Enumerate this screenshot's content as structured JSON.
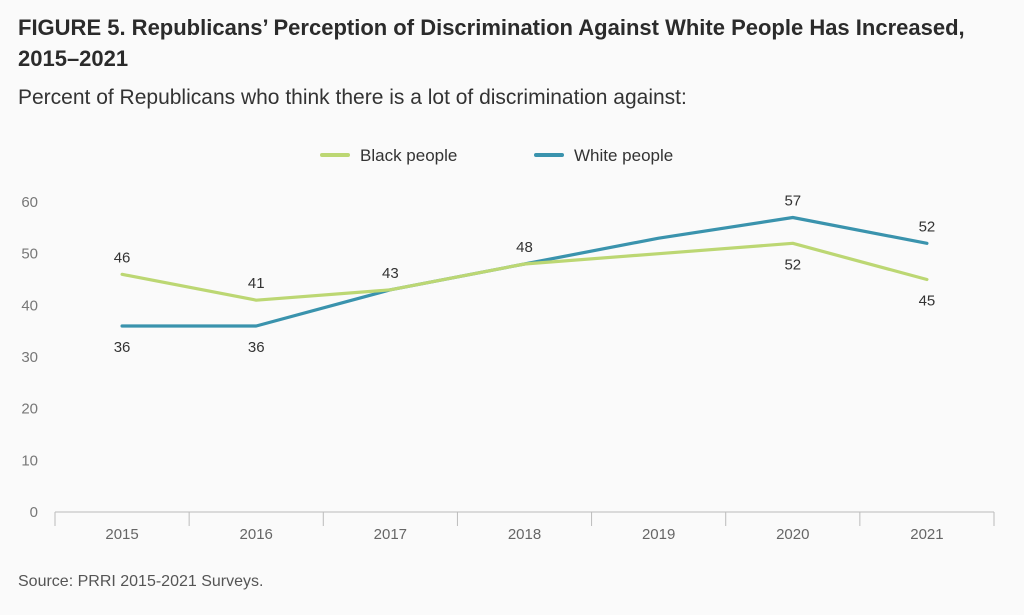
{
  "header": {
    "title": "FIGURE 5. Republicans’ Perception of Discrimination Against White People Has Increased, 2015–2021",
    "subtitle": "Percent of Republicans who think there is a lot of discrimination against:"
  },
  "footer": {
    "source": "Source: PRRI 2015-2021 Surveys."
  },
  "chart_data": {
    "type": "line",
    "title": "FIGURE 5. Republicans’ Perception of Discrimination Against White People Has Increased, 2015–2021",
    "subtitle": "Percent of Republicans who think there is a lot of discrimination against:",
    "xlabel": "",
    "ylabel": "",
    "categories": [
      "2015",
      "2016",
      "2017",
      "2018",
      "2019",
      "2020",
      "2021"
    ],
    "ylim": [
      0,
      60
    ],
    "yticks": [
      0,
      10,
      20,
      30,
      40,
      50,
      60
    ],
    "grid": false,
    "legend_position": "top-center",
    "series": [
      {
        "name": "Black people",
        "color": "#bcd773",
        "values": [
          46,
          41,
          43,
          48,
          50,
          52,
          45
        ],
        "data_labels": [
          "46",
          "41",
          "43",
          "48",
          "",
          "52",
          "45"
        ],
        "label_side": [
          "above",
          "above",
          "above",
          "above",
          "none",
          "below",
          "below"
        ]
      },
      {
        "name": "White people",
        "color": "#3a93ad",
        "values": [
          36,
          36,
          43,
          48,
          53,
          57,
          52
        ],
        "data_labels": [
          "36",
          "36",
          "",
          "",
          "",
          "57",
          "52"
        ],
        "label_side": [
          "below",
          "below",
          "none",
          "none",
          "none",
          "above",
          "above"
        ]
      }
    ],
    "source": "Source: PRRI 2015-2021 Surveys."
  }
}
